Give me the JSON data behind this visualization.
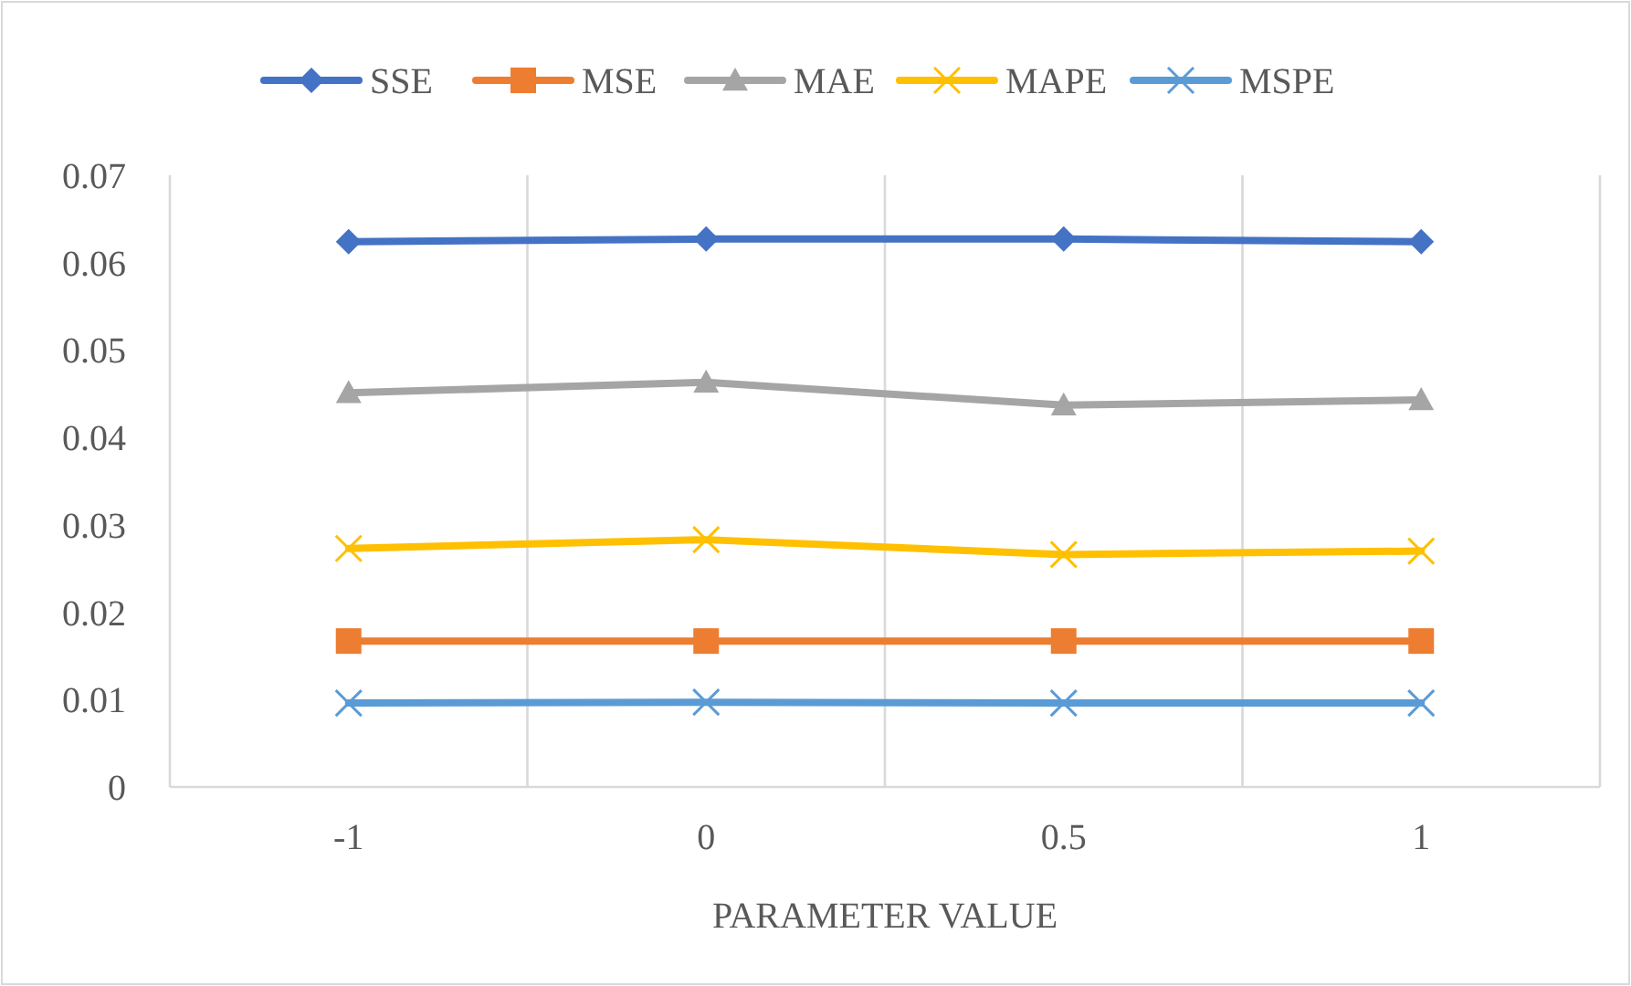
{
  "chart_data": {
    "type": "line",
    "xlabel": "PARAMETER VALUE",
    "categories": [
      "-1",
      "0",
      "0.5",
      "1"
    ],
    "series": [
      {
        "name": "SSE",
        "color": "#4472c4",
        "marker": "diamond",
        "values": [
          0.0624,
          0.0627,
          0.0627,
          0.0624
        ]
      },
      {
        "name": "MSE",
        "color": "#ed7d31",
        "marker": "square",
        "values": [
          0.0167,
          0.0167,
          0.0167,
          0.0167
        ]
      },
      {
        "name": "MAE",
        "color": "#a5a5a5",
        "marker": "triangle",
        "values": [
          0.0451,
          0.0463,
          0.0437,
          0.0443
        ]
      },
      {
        "name": "MAPE",
        "color": "#ffc000",
        "marker": "cross",
        "values": [
          0.0273,
          0.0283,
          0.0266,
          0.027
        ]
      },
      {
        "name": "MSPE",
        "color": "#5b9bd5",
        "marker": "cross",
        "values": [
          0.0096,
          0.0097,
          0.0096,
          0.0096
        ]
      }
    ],
    "ylim": [
      0,
      0.07
    ],
    "yticks": [
      0,
      0.01,
      0.02,
      0.03,
      0.04,
      0.05,
      0.06,
      0.07
    ],
    "grid": "x",
    "legend": "top"
  }
}
